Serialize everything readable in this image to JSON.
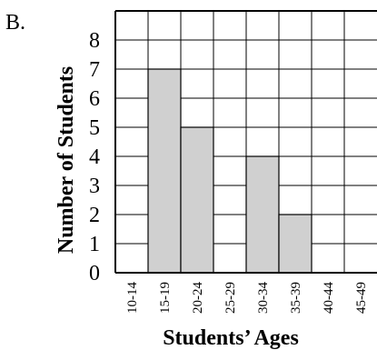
{
  "panel_label": "B.",
  "chart_data": {
    "type": "bar",
    "title": "",
    "xlabel": "Students’ Ages",
    "ylabel": "Number of Students",
    "categories": [
      "10-14",
      "15-19",
      "20-24",
      "25-29",
      "30-34",
      "35-39",
      "40-44",
      "45-49"
    ],
    "values": [
      0,
      7,
      5,
      0,
      4,
      2,
      0,
      0
    ],
    "ylim": [
      0,
      9
    ],
    "y_ticks": [
      0,
      1,
      2,
      3,
      4,
      5,
      6,
      7,
      8
    ],
    "grid": true,
    "bar_color": "#d0d0d0",
    "grid_color": "#000000"
  }
}
